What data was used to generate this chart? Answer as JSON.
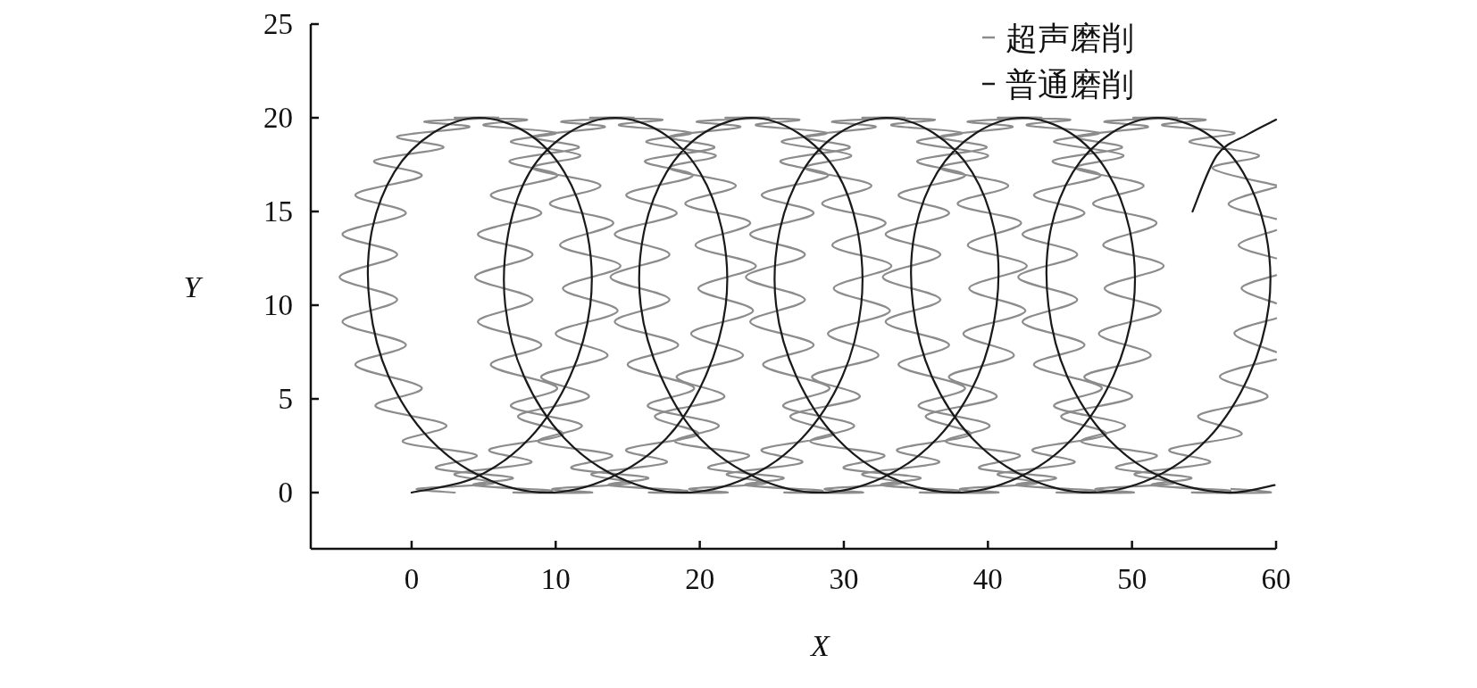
{
  "chart_data": {
    "type": "line",
    "xlabel": "X",
    "ylabel": "Y",
    "xlim": [
      -7,
      60
    ],
    "ylim": [
      -3,
      25
    ],
    "xticks": [
      0,
      10,
      20,
      30,
      40,
      50,
      60
    ],
    "yticks": [
      0,
      5,
      10,
      15,
      20,
      25
    ],
    "legend": "top right",
    "series": [
      {
        "name": "超声磨削",
        "color": "#8c8c8c",
        "x": [
          3.0,
          0.4,
          5.7,
          3.0,
          8.3,
          5.4,
          10.5,
          7.4,
          12.3,
          9.0,
          13.6,
          10.0,
          14.3,
          10.5,
          14.5,
          10.3,
          14.0,
          9.6,
          13.1,
          8.4,
          11.7,
          6.9,
          10.0,
          5.0,
          8.0,
          3.0,
          6.0,
          0.9,
          4.0,
          -1.0,
          2.2,
          -2.6,
          0.7,
          -3.9,
          -0.4,
          -4.8,
          -1.0,
          -5.0,
          -1.0,
          -4.8,
          -0.4,
          -3.9,
          0.7,
          -2.5,
          2.4,
          -0.6,
          4.5,
          1.7,
          7.0,
          4.3,
          9.7,
          7.1,
          12.5,
          9.8,
          15.2,
          12.5,
          17.7,
          14.9,
          19.9,
          16.9,
          21.7,
          18.4,
          23.0,
          19.4,
          23.7,
          19.9,
          23.9,
          19.7,
          23.5,
          19.0,
          22.5,
          17.9,
          21.1,
          16.3,
          19.4,
          14.4,
          17.4,
          12.4,
          15.4,
          10.4,
          13.4,
          8.4,
          11.6,
          6.8,
          10.1,
          5.5,
          9.0,
          4.6,
          8.4,
          4.4,
          8.4,
          4.6,
          9.0,
          5.5,
          10.1,
          6.9,
          11.8,
          8.8,
          13.9,
          11.1,
          16.4,
          13.7,
          19.1,
          16.5,
          21.9,
          19.3,
          24.6,
          21.9,
          27.1,
          24.3,
          29.3,
          26.3,
          31.1,
          27.8,
          32.4,
          28.9,
          33.2,
          29.3,
          33.3,
          29.2,
          32.9,
          28.5,
          31.9,
          27.3,
          30.5,
          25.7,
          28.8,
          23.9,
          26.9,
          21.8,
          24.8,
          19.8,
          22.8,
          17.9,
          21.0,
          16.2,
          19.5,
          14.9,
          18.4,
          14.1,
          17.9,
          13.8,
          17.9,
          14.1,
          18.5,
          15.0,
          19.6,
          16.4,
          21.3,
          18.3,
          23.4,
          20.6,
          25.8,
          23.2,
          28.5,
          25.9,
          31.3,
          28.7,
          34.0,
          31.3,
          36.6,
          33.7,
          38.8,
          35.7,
          40.6,
          37.3,
          41.8,
          38.3,
          42.6,
          38.7,
          42.7,
          38.6,
          42.3,
          37.9,
          41.4,
          36.7,
          40.0,
          35.1,
          38.2,
          33.3,
          36.3,
          31.3,
          34.2,
          29.2,
          32.2,
          27.3,
          30.4,
          25.6,
          28.9,
          24.3,
          27.9,
          23.5,
          27.3,
          23.2,
          27.3,
          23.5,
          27.9,
          24.4,
          29.0,
          25.8,
          30.7,
          27.7,
          32.8,
          30.0,
          35.3,
          32.6,
          38.0,
          35.3,
          40.7,
          38.1,
          43.4,
          40.7,
          46.0,
          43.1,
          48.2,
          45.1,
          50.0,
          46.7,
          51.3,
          47.7,
          52.0,
          48.1,
          52.2,
          48.0,
          51.7,
          47.3,
          50.8,
          46.1,
          49.4,
          44.6,
          47.7,
          42.7,
          45.7,
          40.7,
          43.7,
          38.6,
          41.7,
          36.7,
          39.9,
          35.1,
          38.4,
          33.8,
          37.3,
          32.9,
          36.7,
          32.7,
          36.7,
          32.9,
          37.3,
          33.8,
          38.4,
          35.2,
          40.1,
          37.1,
          42.2,
          39.4,
          44.7,
          42.0,
          47.4,
          44.8,
          50.1,
          47.5,
          52.9,
          50.2,
          55.4,
          52.6,
          57.6,
          54.6,
          59.4,
          56.1,
          60,
          null,
          60,
          57.1,
          60,
          null,
          60,
          57.6,
          60,
          null,
          60,
          57.4,
          60,
          null,
          60,
          56.7,
          60,
          null,
          60,
          55.6,
          58.8,
          54.0,
          57.1,
          52.1,
          55.1,
          50.1,
          53.1,
          48.1,
          51.1,
          46.1,
          49.3,
          44.5,
          47.8,
          43.2,
          46.7,
          42.4,
          46.2,
          42.1,
          46.2,
          42.4,
          46.7,
          43.2,
          47.9,
          44.6,
          49.5,
          46.5,
          51.7,
          48.9,
          54.1,
          51.4,
          56.8,
          54.2,
          59.6,
          56.9
        ],
        "values": [
          0,
          0.2,
          0.5,
          1.0,
          1.6,
          2.3,
          3.1,
          4.1,
          5.1,
          6.2,
          7.3,
          8.5,
          9.7,
          10.9,
          12.1,
          13.2,
          14.4,
          15.4,
          16.4,
          17.3,
          18.0,
          18.7,
          19.2,
          19.6,
          19.9,
          20.0,
          20.0,
          19.8,
          19.5,
          19.0,
          18.4,
          17.7,
          16.9,
          15.9,
          14.9,
          13.8,
          12.7,
          11.5,
          10.3,
          9.1,
          7.9,
          6.8,
          5.6,
          4.6,
          3.6,
          2.7,
          2.0,
          1.3,
          0.8,
          0.4,
          0.1,
          0,
          0,
          0.2,
          0.5,
          1.0,
          1.6,
          2.3,
          3.1,
          4.1,
          5.1,
          6.2,
          7.3,
          8.5,
          9.7,
          10.9,
          12.1,
          13.2,
          14.4,
          15.4,
          16.4,
          17.3,
          18.0,
          18.7,
          19.2,
          19.6,
          19.9,
          20.0,
          20.0,
          19.8,
          19.5,
          19.0,
          18.4,
          17.7,
          16.9,
          15.9,
          14.9,
          13.8,
          12.7,
          11.5,
          10.3,
          9.1,
          7.9,
          6.8,
          5.6,
          4.6,
          3.6,
          2.7,
          2.0,
          1.3,
          0.8,
          0.4,
          0.1,
          0,
          0,
          0.2,
          0.5,
          1.0,
          1.6,
          2.3,
          3.1,
          4.1,
          5.1,
          6.2,
          7.3,
          8.5,
          9.7,
          10.9,
          12.1,
          13.2,
          14.4,
          15.4,
          16.4,
          17.3,
          18.0,
          18.7,
          19.2,
          19.6,
          19.9,
          20.0,
          20.0,
          19.8,
          19.5,
          19.0,
          18.4,
          17.7,
          16.9,
          15.9,
          14.9,
          13.8,
          12.7,
          11.5,
          10.3,
          9.1,
          7.9,
          6.8,
          5.6,
          4.6,
          3.6,
          2.7,
          2.0,
          1.3,
          0.8,
          0.4,
          0.1,
          0,
          0,
          0.2,
          0.5,
          1.0,
          1.6,
          2.3,
          3.1,
          4.1,
          5.1,
          6.2,
          7.3,
          8.5,
          9.7,
          10.9,
          12.1,
          13.2,
          14.4,
          15.4,
          16.4,
          17.3,
          18.0,
          18.7,
          19.2,
          19.6,
          19.9,
          20.0,
          20.0,
          19.8,
          19.5,
          19.0,
          18.4,
          17.7,
          16.9,
          15.9,
          14.9,
          13.8,
          12.7,
          11.5,
          10.3,
          9.1,
          7.9,
          6.8,
          5.6,
          4.6,
          3.6,
          2.7,
          2.0,
          1.3,
          0.8,
          0.4,
          0.1,
          0,
          0,
          0.2,
          0.5,
          1.0,
          1.6,
          2.3,
          3.1,
          4.1,
          5.1,
          6.2,
          7.3,
          8.5,
          9.7,
          10.9,
          12.1,
          13.2,
          14.4,
          15.4,
          16.4,
          17.3,
          18.0,
          18.7,
          19.2,
          19.6,
          19.9,
          20.0,
          20.0,
          19.8,
          19.5,
          19.0,
          18.4,
          17.7,
          16.9,
          15.9,
          14.9,
          13.8,
          12.7,
          11.5,
          10.3,
          9.1,
          7.9,
          6.8,
          5.6,
          4.6,
          3.6,
          2.7,
          2.0,
          1.3,
          0.8,
          0.4,
          0.1,
          0,
          0,
          0.2,
          0.5,
          1.0,
          1.6,
          2.3,
          3.1,
          4.1,
          5.1,
          6.2,
          7.1,
          null,
          7.5,
          8.5,
          9.3,
          null,
          10.1,
          10.9,
          11.6,
          null,
          12.5,
          13.2,
          14.0,
          null,
          14.6,
          15.4,
          16.3,
          null,
          16.4,
          17.3,
          18.0,
          18.7,
          19.2,
          19.6,
          19.9,
          20.0,
          20.0,
          19.8,
          19.5,
          19.0,
          18.4,
          17.7,
          16.9,
          15.9,
          14.9,
          13.8,
          12.7,
          11.5,
          10.3,
          9.1,
          7.9,
          6.8,
          5.6,
          4.6,
          3.6,
          2.7,
          2.0,
          1.3,
          0.8,
          0.4,
          0.1,
          0,
          0,
          0.2
        ]
      },
      {
        "name": "普通磨削",
        "color": "#1a1a1a",
        "x": [
          0.0,
          4.4,
          8.2,
          11.0,
          12.4,
          12.2,
          10.6,
          8.0,
          4.7,
          1.5,
          -1.2,
          -2.8,
          -2.9,
          -1.6,
          1.2,
          5.0,
          9.4,
          13.8,
          17.7,
          20.4,
          21.8,
          21.6,
          20.0,
          17.4,
          14.1,
          10.9,
          8.2,
          6.7,
          6.5,
          7.8,
          10.6,
          14.4,
          18.8,
          23.3,
          27.1,
          29.9,
          31.2,
          31.0,
          29.5,
          26.8,
          23.6,
          20.3,
          17.7,
          16.1,
          15.9,
          17.3,
          20.0,
          23.9,
          28.3,
          32.7,
          36.5,
          39.3,
          40.6,
          40.5,
          38.9,
          36.2,
          33.0,
          29.7,
          27.1,
          25.5,
          25.3,
          26.7,
          29.5,
          33.3,
          37.7,
          42.1,
          45.9,
          48.7,
          50.1,
          49.9,
          48.3,
          45.7,
          42.4,
          39.2,
          36.5,
          34.9,
          34.8,
          36.1,
          38.9,
          42.7,
          47.1,
          51.5,
          55.3,
          58.1,
          59.5,
          59.3,
          57.7,
          55.1,
          51.8,
          48.6,
          45.9,
          44.3,
          44.2,
          45.5,
          48.3,
          52.1,
          56.5,
          59.9,
          null,
          54.2,
          55.9,
          58.0,
          60
        ],
        "values": [
          0,
          0.8,
          2.9,
          6.2,
          10,
          13.8,
          17.1,
          19.2,
          20,
          19.2,
          17.1,
          13.8,
          10,
          6.2,
          2.9,
          0.8,
          0,
          0.8,
          2.9,
          6.2,
          10,
          13.8,
          17.1,
          19.2,
          20,
          19.2,
          17.1,
          13.8,
          10,
          6.2,
          2.9,
          0.8,
          0,
          0.8,
          2.9,
          6.2,
          10,
          13.8,
          17.1,
          19.2,
          20,
          19.2,
          17.1,
          13.8,
          10,
          6.2,
          2.9,
          0.8,
          0,
          0.8,
          2.9,
          6.2,
          10,
          13.8,
          17.1,
          19.2,
          20,
          19.2,
          17.1,
          13.8,
          10,
          6.2,
          2.9,
          0.8,
          0,
          0.8,
          2.9,
          6.2,
          10,
          13.8,
          17.1,
          19.2,
          20,
          19.2,
          17.1,
          13.8,
          10,
          6.2,
          2.9,
          0.8,
          0,
          0.8,
          2.9,
          6.2,
          10,
          13.8,
          17.1,
          19.2,
          20,
          19.2,
          17.1,
          13.8,
          10,
          6.2,
          2.9,
          0.8,
          0,
          0.4,
          null,
          15.0,
          18.0,
          19.1,
          19.9
        ]
      }
    ]
  }
}
